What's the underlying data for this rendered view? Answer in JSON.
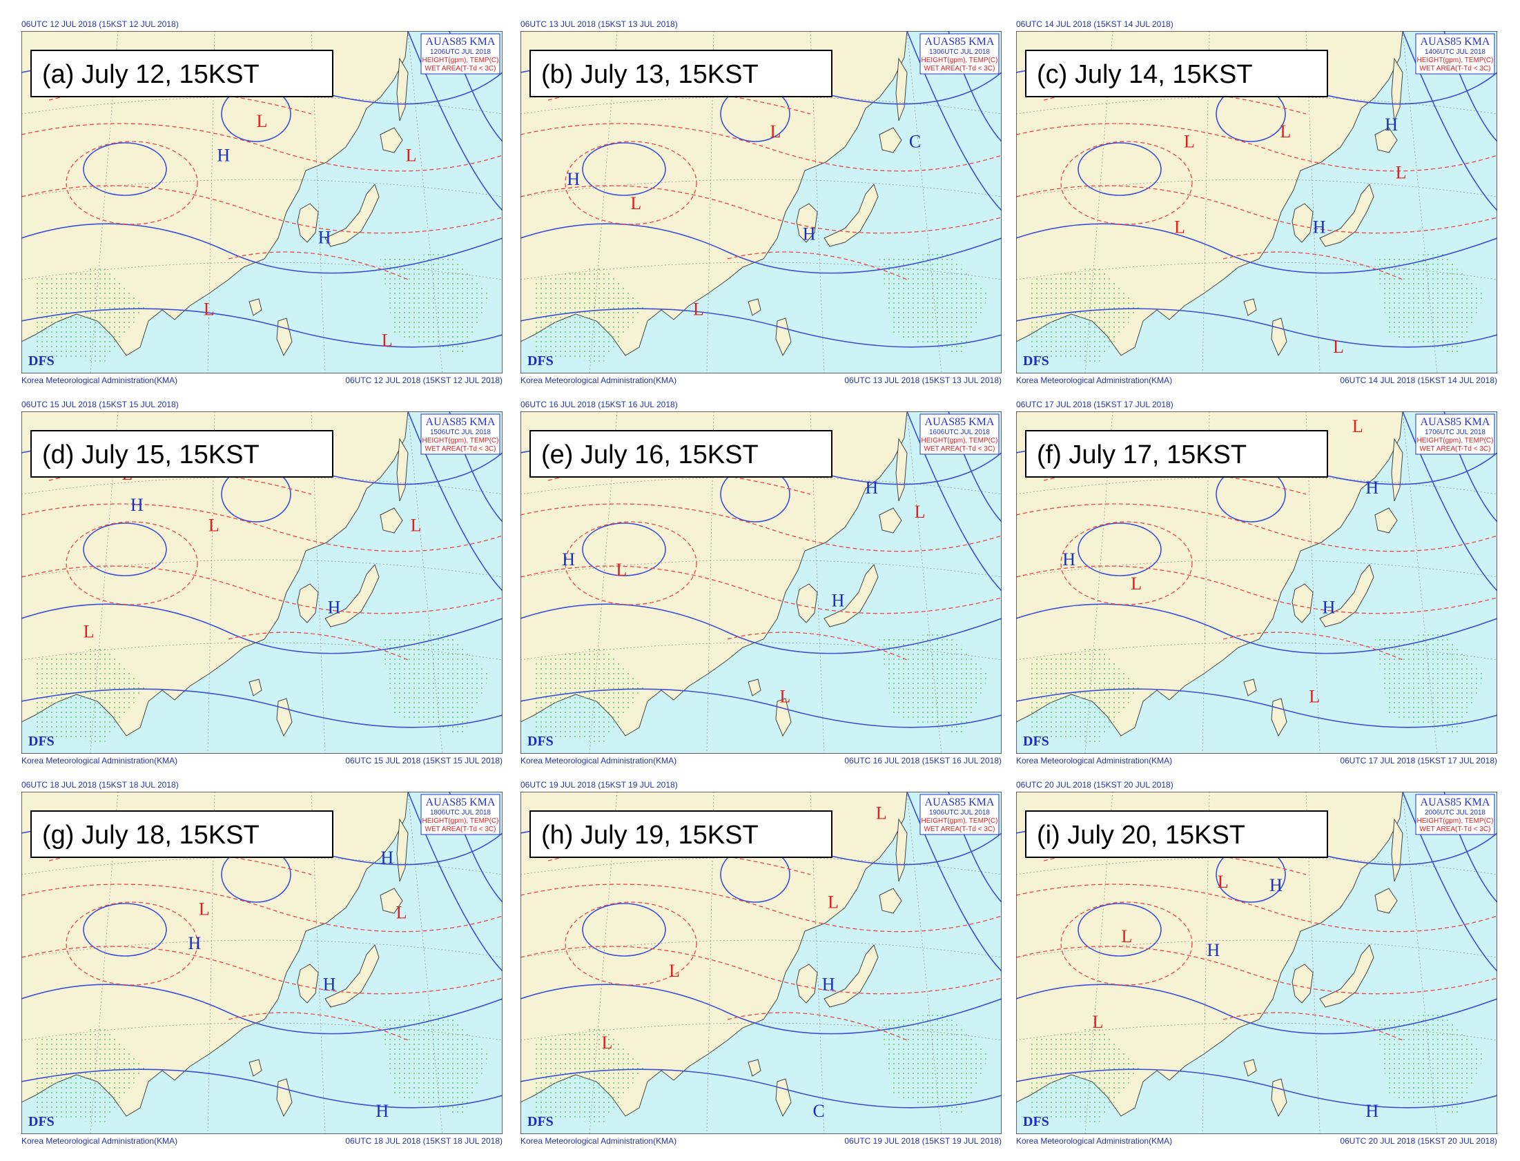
{
  "panels": [
    {
      "header": "06UTC 12 JUL 2018 (15KST 12 JUL 2018)",
      "label": "(a) July 12, 15KST",
      "product": "AUAS85 KMA",
      "valid": "1206UTC JUL 2018",
      "legend": [
        "HEIGHT(gpm), TEMP(C)",
        "WET AREA(T-Td < 3C)"
      ],
      "logo": "DFS",
      "agency": "Korea Meteorological Administration(KMA)",
      "footer": "06UTC 12 JUL 2018 (15KST 12 JUL 2018)",
      "systems": [
        "L",
        "L",
        "H",
        "H",
        "L",
        "L"
      ]
    },
    {
      "header": "06UTC 13 JUL 2018 (15KST 13 JUL 2018)",
      "label": "(b) July 13, 15KST",
      "product": "AUAS85 KMA",
      "valid": "1306UTC JUL 2018",
      "legend": [
        "HEIGHT(gpm), TEMP(C)",
        "WET AREA(T-Td < 3C)"
      ],
      "logo": "DFS",
      "agency": "Korea Meteorological Administration(KMA)",
      "footer": "06UTC 13 JUL 2018 (15KST 13 JUL 2018)",
      "systems": [
        "L",
        "L",
        "H",
        "H",
        "L",
        "C"
      ]
    },
    {
      "header": "06UTC 14 JUL 2018 (15KST 14 JUL 2018)",
      "label": "(c) July 14, 15KST",
      "product": "AUAS85 KMA",
      "valid": "1406UTC JUL 2018",
      "legend": [
        "HEIGHT(gpm), TEMP(C)",
        "WET AREA(T-Td < 3C)"
      ],
      "logo": "DFS",
      "agency": "Korea Meteorological Administration(KMA)",
      "footer": "06UTC 14 JUL 2018 (15KST 14 JUL 2018)",
      "systems": [
        "L",
        "L",
        "H",
        "L",
        "L",
        "H",
        "L"
      ]
    },
    {
      "header": "06UTC 15 JUL 2018 (15KST 15 JUL 2018)",
      "label": "(d) July 15, 15KST",
      "product": "AUAS85 KMA",
      "valid": "1506UTC JUL 2018",
      "legend": [
        "HEIGHT(gpm), TEMP(C)",
        "WET AREA(T-Td < 3C)"
      ],
      "logo": "DFS",
      "agency": "Korea Meteorological Administration(KMA)",
      "footer": "06UTC 15 JUL 2018 (15KST 15 JUL 2018)",
      "systems": [
        "L",
        "H",
        "L",
        "L",
        "H",
        "L"
      ]
    },
    {
      "header": "06UTC 16 JUL 2018 (15KST 16 JUL 2018)",
      "label": "(e) July 16, 15KST",
      "product": "AUAS85 KMA",
      "valid": "1606UTC JUL 2018",
      "legend": [
        "HEIGHT(gpm), TEMP(C)",
        "WET AREA(T-Td < 3C)"
      ],
      "logo": "DFS",
      "agency": "Korea Meteorological Administration(KMA)",
      "footer": "06UTC 16 JUL 2018 (15KST 16 JUL 2018)",
      "systems": [
        "H",
        "L",
        "H",
        "L",
        "H",
        "L"
      ]
    },
    {
      "header": "06UTC 17 JUL 2018 (15KST 17 JUL 2018)",
      "label": "(f) July 17, 15KST",
      "product": "AUAS85 KMA",
      "valid": "1706UTC JUL 2018",
      "legend": [
        "HEIGHT(gpm), TEMP(C)",
        "WET AREA(T-Td < 3C)"
      ],
      "logo": "DFS",
      "agency": "Korea Meteorological Administration(KMA)",
      "footer": "06UTC 17 JUL 2018 (15KST 17 JUL 2018)",
      "systems": [
        "L",
        "H",
        "L",
        "H",
        "H",
        "L"
      ]
    },
    {
      "header": "06UTC 18 JUL 2018 (15KST 18 JUL 2018)",
      "label": "(g) July 18, 15KST",
      "product": "AUAS85 KMA",
      "valid": "1806UTC JUL 2018",
      "legend": [
        "HEIGHT(gpm), TEMP(C)",
        "WET AREA(T-Td < 3C)"
      ],
      "logo": "DFS",
      "agency": "Korea Meteorological Administration(KMA)",
      "footer": "06UTC 18 JUL 2018 (15KST 18 JUL 2018)",
      "systems": [
        "L",
        "H",
        "H",
        "L",
        "H",
        "H"
      ]
    },
    {
      "header": "06UTC 19 JUL 2018 (15KST 19 JUL 2018)",
      "label": "(h) July 19, 15KST",
      "product": "AUAS85 KMA",
      "valid": "1906UTC JUL 2018",
      "legend": [
        "HEIGHT(gpm), TEMP(C)",
        "WET AREA(T-Td < 3C)"
      ],
      "logo": "DFS",
      "agency": "Korea Meteorological Administration(KMA)",
      "footer": "06UTC 19 JUL 2018 (15KST 19 JUL 2018)",
      "systems": [
        "L",
        "L",
        "L",
        "H",
        "L",
        "C"
      ]
    },
    {
      "header": "06UTC 20 JUL 2018 (15KST 20 JUL 2018)",
      "label": "(i) July 20, 15KST",
      "product": "AUAS85 KMA",
      "valid": "2006UTC JUL 2018",
      "legend": [
        "HEIGHT(gpm), TEMP(C)",
        "WET AREA(T-Td < 3C)"
      ],
      "logo": "DFS",
      "agency": "Korea Meteorological Administration(KMA)",
      "footer": "06UTC 20 JUL 2018 (15KST 20 JUL 2018)",
      "systems": [
        "L",
        "H",
        "L",
        "H",
        "L",
        "H"
      ]
    }
  ]
}
